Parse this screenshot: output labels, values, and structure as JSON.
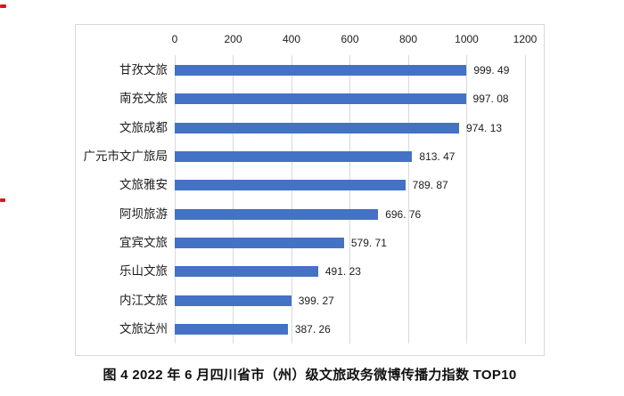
{
  "page": {
    "background": "#ffffff"
  },
  "marks": {
    "red_dash_color": "#d6181f"
  },
  "chart_data": {
    "type": "bar",
    "orientation": "horizontal",
    "title": "图 4 2022 年 6 月四川省市（州）级文旅政务微博传播力指数 TOP10",
    "categories": [
      "甘孜文旅",
      "南充文旅",
      "文旅成都",
      "广元市文广旅局",
      "文旅雅安",
      "阿坝旅游",
      "宜宾文旅",
      "乐山文旅",
      "内江文旅",
      "文旅达州"
    ],
    "values": [
      999.49,
      997.08,
      974.13,
      813.47,
      789.87,
      696.76,
      579.71,
      491.23,
      399.27,
      387.26
    ],
    "value_labels": [
      "999. 49",
      "997. 08",
      "974. 13",
      "813. 47",
      "789. 87",
      "696. 76",
      "579. 71",
      "491. 23",
      "399. 27",
      "387. 26"
    ],
    "x_ticks": [
      "0",
      "200",
      "400",
      "600",
      "800",
      "1000",
      "1200"
    ],
    "x_tick_values": [
      0,
      200,
      400,
      600,
      800,
      1000,
      1200
    ],
    "xlim": [
      0,
      1200
    ],
    "axis_position": "top",
    "grid": true,
    "legend": false,
    "bar_color": "#4472c4",
    "gridline_color": "#d9d9d9",
    "frame_border_color": "#d9d9d9",
    "text_color": "#1c1c1c"
  }
}
